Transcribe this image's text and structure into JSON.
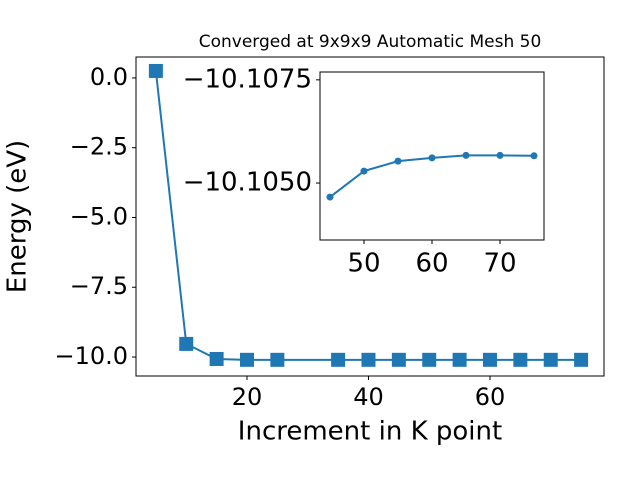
{
  "chart_data": [
    {
      "type": "line",
      "title": "Converged at 9x9x9 Automatic Mesh 50",
      "xlabel": "Increment in K point",
      "ylabel": "Energy (eV)",
      "x": [
        5,
        10,
        15,
        20,
        25,
        35,
        40,
        45,
        50,
        55,
        60,
        65,
        70,
        75
      ],
      "series": [
        {
          "color": "#1f77b4",
          "marker": "square",
          "values": [
            0.25,
            -9.53,
            -10.07,
            -10.1,
            -10.1,
            -10.1,
            -10.1,
            -10.1,
            -10.1,
            -10.1,
            -10.1,
            -10.1,
            -10.1,
            -10.1
          ]
        }
      ],
      "xlim": [
        1.73,
        78.77
      ],
      "ylim": [
        -10.68,
        0.75
      ],
      "xticks": [
        20,
        40,
        60
      ],
      "yticks": [
        {
          "value": 0,
          "label": "0.0"
        },
        {
          "value": -2.5,
          "label": "−2.5"
        },
        {
          "value": -5,
          "label": "−5.0"
        },
        {
          "value": -7.5,
          "label": "−7.5"
        },
        {
          "value": -10,
          "label": "−10.0"
        }
      ]
    },
    {
      "type": "line",
      "x": [
        45,
        50,
        55,
        60,
        65,
        70,
        75
      ],
      "series": [
        {
          "color": "#1f77b4",
          "marker": "circle",
          "values": [
            -10.10466,
            -10.10529,
            -10.10553,
            -10.10561,
            -10.10567,
            -10.10567,
            -10.10566
          ]
        }
      ],
      "xlim": [
        43.53,
        76.47
      ],
      "ylim": [
        -10.10362,
        -10.10769
      ],
      "xticks": [
        50,
        60,
        70
      ],
      "yticks": [
        {
          "value": -10.1075,
          "label": "−10.1075"
        },
        {
          "value": -10.105,
          "label": "−10.1050"
        }
      ]
    }
  ]
}
